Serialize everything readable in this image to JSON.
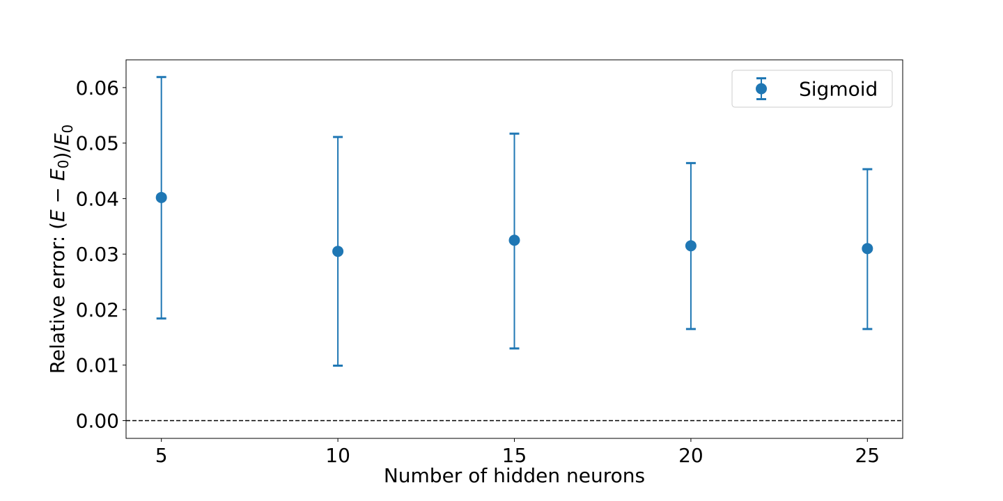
{
  "chart_data": {
    "type": "scatter",
    "title": "",
    "xlabel": "Number of hidden neurons",
    "ylabel": "Relative error: (E − E₀)/E₀",
    "xlim": [
      4,
      26
    ],
    "ylim": [
      -0.0032,
      0.065
    ],
    "xticks": [
      5,
      10,
      15,
      20,
      25
    ],
    "yticks": [
      0.0,
      0.01,
      0.02,
      0.03,
      0.04,
      0.05,
      0.06
    ],
    "ytick_labels": [
      "0.00",
      "0.01",
      "0.02",
      "0.03",
      "0.04",
      "0.05",
      "0.06"
    ],
    "grid": false,
    "legend_position": "top-right",
    "reference_line": {
      "y": 0.0,
      "style": "dashed",
      "color": "#000000"
    },
    "series": [
      {
        "name": "Sigmoid",
        "color": "#1f77b4",
        "marker": "circle",
        "points": [
          {
            "x": 5,
            "y": 0.0402,
            "err_low": 0.0184,
            "err_high": 0.0619
          },
          {
            "x": 10,
            "y": 0.0305,
            "err_low": 0.0099,
            "err_high": 0.0511
          },
          {
            "x": 15,
            "y": 0.0325,
            "err_low": 0.013,
            "err_high": 0.0517
          },
          {
            "x": 20,
            "y": 0.0315,
            "err_low": 0.0165,
            "err_high": 0.0464
          },
          {
            "x": 25,
            "y": 0.031,
            "err_low": 0.0165,
            "err_high": 0.0453
          }
        ]
      }
    ]
  }
}
